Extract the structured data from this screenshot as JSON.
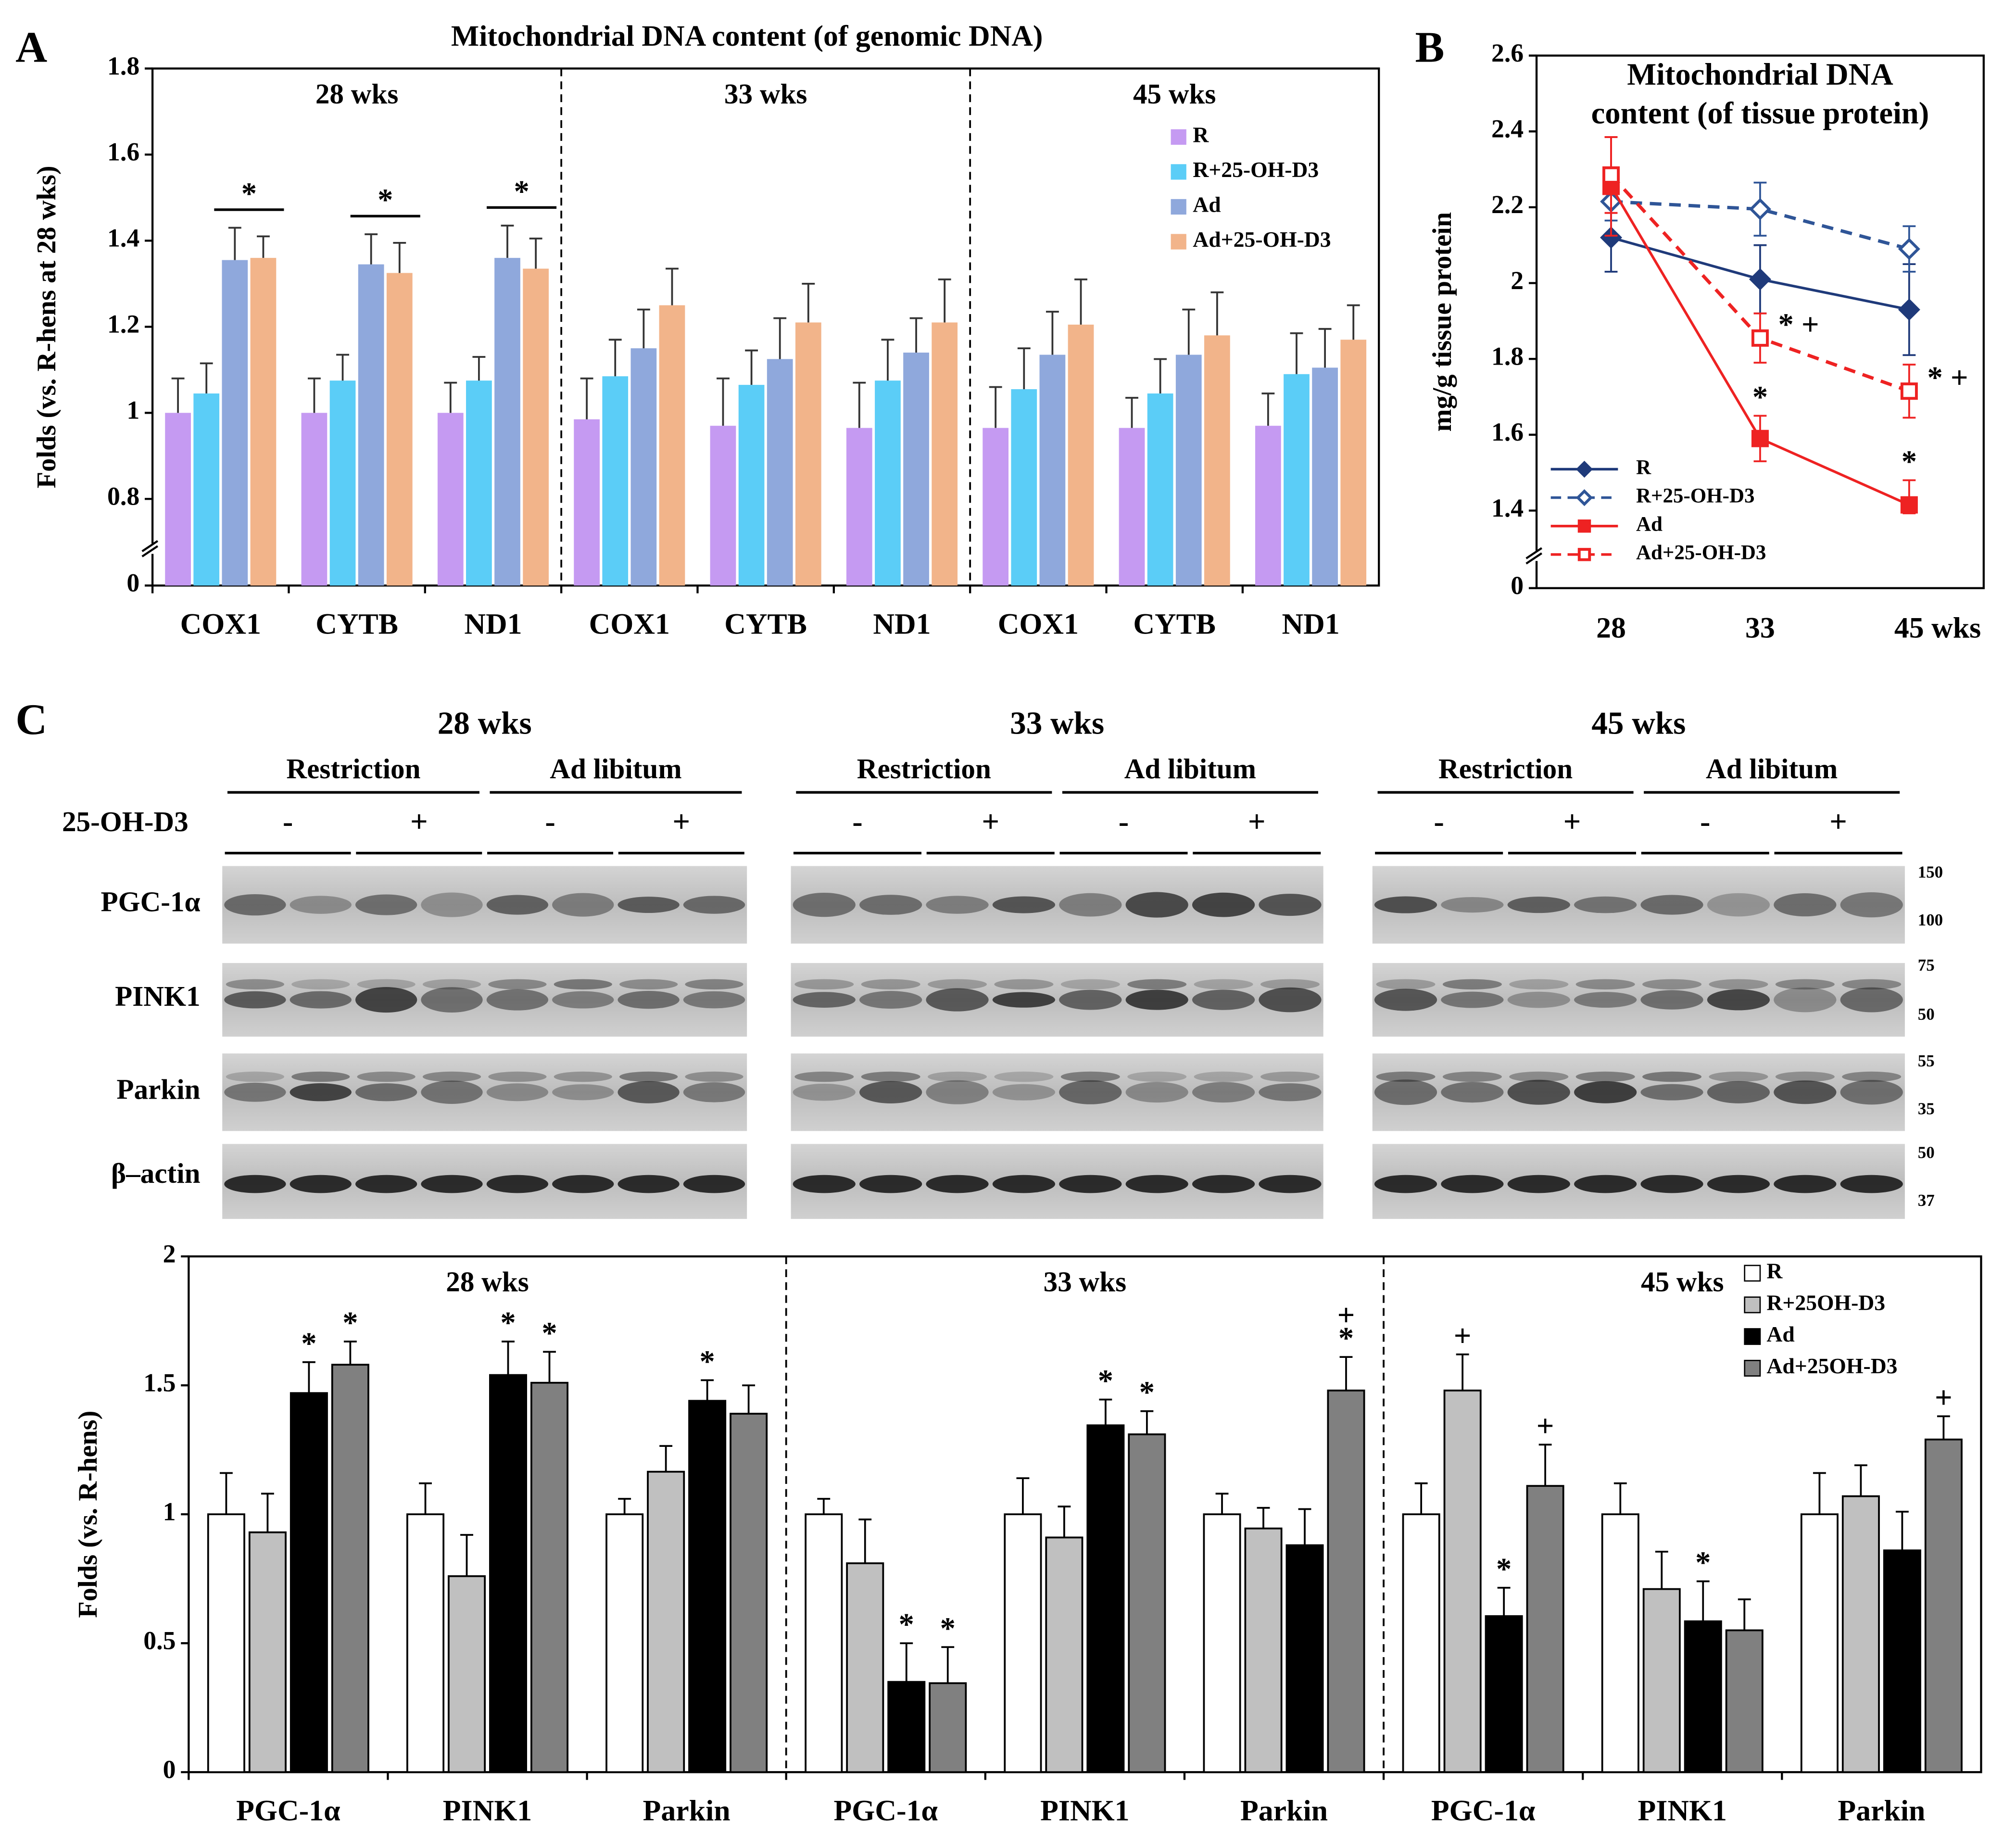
{
  "chart_data": [
    {
      "type": "bar",
      "panel": "A",
      "title": "Mitochondrial DNA content (of genomic DNA)",
      "ylabel": "Folds (vs. R-hens at 28 wks)",
      "categories": [
        "COX1",
        "CYTB",
        "ND1",
        "COX1",
        "CYTB",
        "ND1",
        "COX1",
        "CYTB",
        "ND1"
      ],
      "groups": [
        "28 wks",
        "33 wks",
        "45 wks"
      ],
      "series": [
        {
          "name": "R",
          "color": "#c59af2",
          "values": [
            1.0,
            1.0,
            1.0,
            0.985,
            0.97,
            0.965,
            0.965,
            0.965,
            0.97
          ],
          "errors": [
            0.08,
            0.08,
            0.07,
            0.095,
            0.11,
            0.105,
            0.095,
            0.07,
            0.075
          ]
        },
        {
          "name": "R+25-OH-D3",
          "color": "#5bcdf7",
          "values": [
            1.045,
            1.075,
            1.075,
            1.085,
            1.065,
            1.075,
            1.055,
            1.045,
            1.09
          ],
          "errors": [
            0.07,
            0.06,
            0.055,
            0.085,
            0.08,
            0.095,
            0.095,
            0.08,
            0.095
          ]
        },
        {
          "name": "Ad",
          "color": "#8fa8dc",
          "values": [
            1.355,
            1.345,
            1.36,
            1.15,
            1.125,
            1.14,
            1.135,
            1.135,
            1.105
          ],
          "errors": [
            0.075,
            0.07,
            0.075,
            0.09,
            0.095,
            0.08,
            0.1,
            0.105,
            0.09
          ]
        },
        {
          "name": "Ad+25-OH-D3",
          "color": "#f2b48a",
          "values": [
            1.36,
            1.325,
            1.335,
            1.25,
            1.21,
            1.21,
            1.205,
            1.18,
            1.17
          ],
          "errors": [
            0.05,
            0.07,
            0.07,
            0.085,
            0.09,
            0.1,
            0.105,
            0.1,
            0.08
          ]
        }
      ],
      "significance": [
        "*",
        "*",
        "*",
        null,
        null,
        null,
        null,
        null,
        null
      ],
      "ylim": [
        0,
        1.8
      ],
      "yticks": [
        0,
        0.8,
        1,
        1.2,
        1.4,
        1.6,
        1.8
      ],
      "axis_break": true,
      "legend": "upper right"
    },
    {
      "type": "line",
      "panel": "B",
      "title": [
        "Mitochondrial DNA",
        "content (of tissue protein)"
      ],
      "ylabel": "mg/g tissue protein",
      "categories": [
        "28",
        "33",
        "45 wks"
      ],
      "series": [
        {
          "name": "R",
          "color": "#1f3a7a",
          "dashed": false,
          "marker": "diamond",
          "filled": true,
          "values": [
            2.12,
            2.01,
            1.93
          ],
          "errors": [
            0.09,
            0.09,
            0.12
          ],
          "labels": [
            null,
            null,
            null
          ],
          "label_side": "above"
        },
        {
          "name": "R+25-OH-D3",
          "color": "#2f5597",
          "dashed": true,
          "marker": "diamond",
          "filled": false,
          "values": [
            2.215,
            2.195,
            2.09
          ],
          "errors": [
            0.05,
            0.07,
            0.06
          ],
          "labels": [
            null,
            null,
            null
          ],
          "label_side": "above"
        },
        {
          "name": "Ad",
          "color": "#ee2222",
          "dashed": false,
          "marker": "square",
          "filled": true,
          "values": [
            2.255,
            1.59,
            1.415
          ],
          "errors": [
            0.13,
            0.06,
            0.065
          ],
          "labels": [
            null,
            "*",
            "*"
          ],
          "label_side": "above"
        },
        {
          "name": "Ad+25-OH-D3",
          "color": "#ee2222",
          "dashed": true,
          "marker": "square",
          "filled": false,
          "values": [
            2.285,
            1.855,
            1.715
          ],
          "errors": [
            0.1,
            0.065,
            0.07
          ],
          "labels": [
            null,
            "* +",
            "* +"
          ],
          "label_side": "right"
        }
      ],
      "ylim": [
        0,
        2.6
      ],
      "yticks": [
        0,
        1.4,
        1.6,
        1.8,
        2,
        2.2,
        2.4,
        2.6
      ],
      "axis_break": true,
      "legend": "lower left"
    },
    {
      "type": "bar",
      "ylabel": "Folds (vs. R-hens)",
      "categories": [
        "PGC-1α",
        "PINK1",
        "Parkin",
        "PGC-1α",
        "PINK1",
        "Parkin",
        "PGC-1α",
        "PINK1",
        "Parkin"
      ],
      "groups": [
        "28 wks",
        "33 wks",
        "45 wks"
      ],
      "series": [
        {
          "name": "R",
          "color": "#ffffff",
          "values": [
            1.0,
            1.0,
            1.0,
            1.0,
            1.0,
            1.0,
            1.0,
            1.0,
            1.0
          ],
          "errors": [
            0.16,
            0.12,
            0.06,
            0.06,
            0.14,
            0.08,
            0.12,
            0.12,
            0.16
          ],
          "labels": [
            null,
            null,
            null,
            null,
            null,
            null,
            null,
            null,
            null
          ]
        },
        {
          "name": "R+25OH-D3",
          "color": "#c0c0c0",
          "values": [
            0.93,
            0.76,
            1.165,
            0.81,
            0.91,
            0.945,
            1.48,
            0.71,
            1.07
          ],
          "errors": [
            0.15,
            0.16,
            0.1,
            0.17,
            0.12,
            0.08,
            0.14,
            0.145,
            0.12
          ],
          "labels": [
            null,
            null,
            null,
            null,
            null,
            null,
            [
              "+"
            ],
            null,
            null
          ]
        },
        {
          "name": "Ad",
          "color": "#000000",
          "values": [
            1.47,
            1.54,
            1.44,
            0.35,
            1.345,
            0.88,
            0.605,
            0.585,
            0.86
          ],
          "errors": [
            0.12,
            0.13,
            0.08,
            0.15,
            0.1,
            0.14,
            0.11,
            0.155,
            0.15
          ],
          "labels": [
            [
              "*"
            ],
            [
              "*"
            ],
            [
              "*"
            ],
            [
              "*"
            ],
            [
              "*"
            ],
            null,
            [
              "*"
            ],
            [
              "*"
            ],
            null
          ]
        },
        {
          "name": "Ad+25OH-D3",
          "color": "#808080",
          "values": [
            1.58,
            1.51,
            1.39,
            0.345,
            1.31,
            1.48,
            1.11,
            0.55,
            1.29
          ],
          "errors": [
            0.09,
            0.12,
            0.11,
            0.14,
            0.09,
            0.13,
            0.16,
            0.12,
            0.09
          ],
          "labels": [
            [
              "*"
            ],
            [
              "*"
            ],
            null,
            [
              "*"
            ],
            [
              "*"
            ],
            [
              "+",
              "*"
            ],
            [
              "+"
            ],
            null,
            [
              "+"
            ]
          ]
        }
      ],
      "ylim": [
        0,
        2
      ],
      "yticks": [
        0,
        0.5,
        1,
        1.5,
        2
      ],
      "axis_break": false,
      "legend": "upper right"
    }
  ],
  "blot": {
    "panel": "C",
    "treatment": "25-OH-D3",
    "groups": [
      {
        "title": "28 wks",
        "diets": [
          "Restriction",
          "Ad libitum"
        ],
        "signs": [
          "-",
          "+",
          "-",
          "+"
        ]
      },
      {
        "title": "33 wks",
        "diets": [
          "Restriction",
          "Ad libitum"
        ],
        "signs": [
          "-",
          "+",
          "-",
          "+"
        ]
      },
      {
        "title": "45 wks",
        "diets": [
          "Restriction",
          "Ad libitum"
        ],
        "signs": [
          "-",
          "+",
          "-",
          "+"
        ]
      }
    ],
    "proteins": [
      "PGC-1α",
      "PINK1",
      "Parkin",
      "β–actin"
    ],
    "markers": [
      "150",
      "100",
      "75",
      "50",
      "55",
      "35",
      "50",
      "37"
    ]
  }
}
